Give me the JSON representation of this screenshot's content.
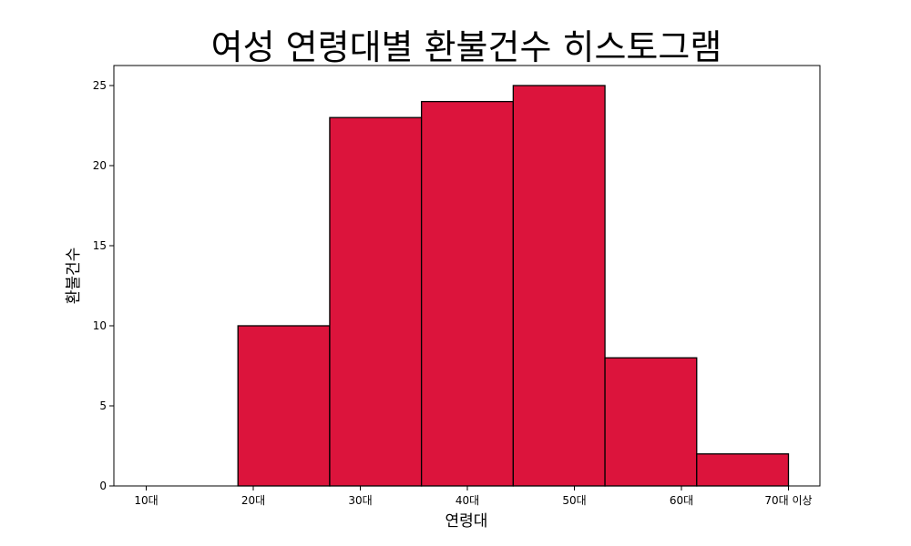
{
  "chart_data": {
    "type": "bar",
    "title": "여성 연령대별 환불건수 히스토그램",
    "xlabel": "연령대",
    "ylabel": "환불건수",
    "x_tick_labels": [
      "10대",
      "20대",
      "30대",
      "40대",
      "50대",
      "60대",
      "70대 이상"
    ],
    "categories": [
      "10대",
      "20대",
      "30대",
      "40대",
      "50대",
      "60대",
      "70대 이상"
    ],
    "values": [
      0,
      10,
      23,
      24,
      25,
      8,
      2
    ],
    "ylim": [
      0,
      26.25
    ],
    "yticks": [
      0,
      5,
      10,
      15,
      20,
      25
    ],
    "grid": false,
    "bar_color": "#dc143c",
    "edge_color": "#000000"
  }
}
